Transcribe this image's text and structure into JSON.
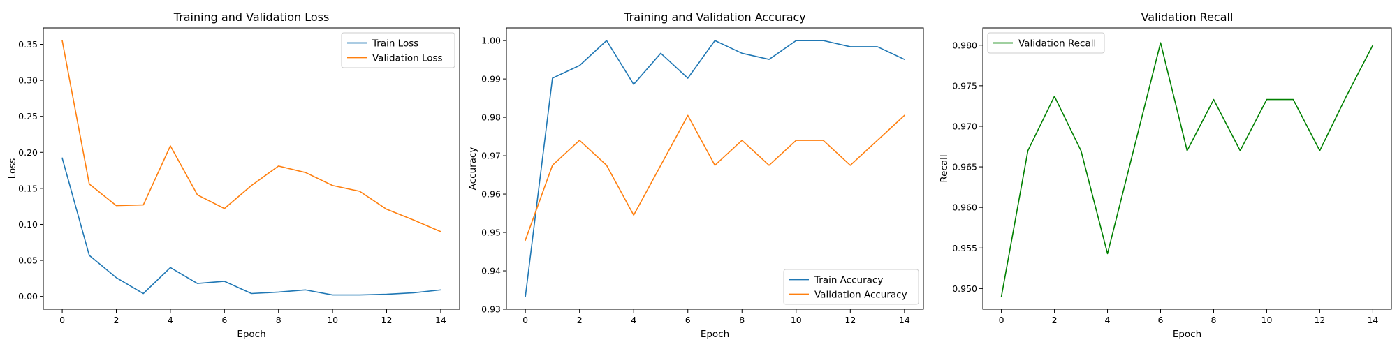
{
  "chart_data": [
    {
      "type": "line",
      "title": "Training and Validation Loss",
      "xlabel": "Epoch",
      "ylabel": "Loss",
      "x": [
        0,
        1,
        2,
        3,
        4,
        5,
        6,
        7,
        8,
        9,
        10,
        11,
        12,
        13,
        14
      ],
      "xlim": [
        -0.7,
        14.7
      ],
      "ylim": [
        -0.0178,
        0.3728
      ],
      "xticks": [
        0,
        2,
        4,
        6,
        8,
        10,
        12,
        14
      ],
      "xtick_labels": [
        "0",
        "2",
        "4",
        "6",
        "8",
        "10",
        "12",
        "14"
      ],
      "yticks": [
        0,
        0.05,
        0.1,
        0.15,
        0.2,
        0.25,
        0.3,
        0.35
      ],
      "ytick_labels": [
        "0.00",
        "0.05",
        "0.10",
        "0.15",
        "0.20",
        "0.25",
        "0.30",
        "0.35"
      ],
      "legend_position": "top-right",
      "grid": false,
      "series": [
        {
          "name": "Train Loss",
          "color": "#1f77b4",
          "values": [
            0.192,
            0.057,
            0.026,
            0.004,
            0.04,
            0.018,
            0.021,
            0.004,
            0.006,
            0.009,
            0.002,
            0.002,
            0.003,
            0.005,
            0.009
          ]
        },
        {
          "name": "Validation Loss",
          "color": "#ff7f0e",
          "values": [
            0.355,
            0.156,
            0.126,
            0.127,
            0.209,
            0.141,
            0.122,
            0.154,
            0.181,
            0.172,
            0.154,
            0.146,
            0.121,
            0.106,
            0.09
          ]
        }
      ]
    },
    {
      "type": "line",
      "title": "Training and Validation Accuracy",
      "xlabel": "Epoch",
      "ylabel": "Accuracy",
      "x": [
        0,
        1,
        2,
        3,
        4,
        5,
        6,
        7,
        8,
        9,
        10,
        11,
        12,
        13,
        14
      ],
      "xlim": [
        -0.7,
        14.7
      ],
      "ylim": [
        0.93,
        1.0033
      ],
      "xticks": [
        0,
        2,
        4,
        6,
        8,
        10,
        12,
        14
      ],
      "xtick_labels": [
        "0",
        "2",
        "4",
        "6",
        "8",
        "10",
        "12",
        "14"
      ],
      "yticks": [
        0.93,
        0.94,
        0.95,
        0.96,
        0.97,
        0.98,
        0.99,
        1.0
      ],
      "ytick_labels": [
        "0.93",
        "0.94",
        "0.95",
        "0.96",
        "0.97",
        "0.98",
        "0.99",
        "1.00"
      ],
      "legend_position": "bottom-right",
      "grid": false,
      "series": [
        {
          "name": "Train Accuracy",
          "color": "#1f77b4",
          "values": [
            0.9333,
            0.9902,
            0.9935,
            1.0,
            0.9886,
            0.9967,
            0.9902,
            1.0,
            0.9967,
            0.9951,
            1.0,
            1.0,
            0.9984,
            0.9984,
            0.9951
          ]
        },
        {
          "name": "Validation Accuracy",
          "color": "#ff7f0e",
          "values": [
            0.948,
            0.9675,
            0.974,
            0.9675,
            0.9545,
            0.9675,
            0.9805,
            0.9675,
            0.974,
            0.9675,
            0.974,
            0.974,
            0.9675,
            0.974,
            0.9805
          ]
        }
      ]
    },
    {
      "type": "line",
      "title": "Validation Recall",
      "xlabel": "Epoch",
      "ylabel": "Recall",
      "x": [
        0,
        1,
        2,
        3,
        4,
        5,
        6,
        7,
        8,
        9,
        10,
        11,
        12,
        13,
        14
      ],
      "xlim": [
        -0.7,
        14.7
      ],
      "ylim": [
        0.94745,
        0.98213
      ],
      "xticks": [
        0,
        2,
        4,
        6,
        8,
        10,
        12,
        14
      ],
      "xtick_labels": [
        "0",
        "2",
        "4",
        "6",
        "8",
        "10",
        "12",
        "14"
      ],
      "yticks": [
        0.95,
        0.955,
        0.96,
        0.965,
        0.97,
        0.975,
        0.98
      ],
      "ytick_labels": [
        "0.950",
        "0.955",
        "0.960",
        "0.965",
        "0.970",
        "0.975",
        "0.980"
      ],
      "legend_position": "top-left",
      "grid": false,
      "series": [
        {
          "name": "Validation Recall",
          "color": "#008000",
          "values": [
            0.949,
            0.967,
            0.9737,
            0.967,
            0.9543,
            0.9673,
            0.9803,
            0.967,
            0.9733,
            0.967,
            0.9733,
            0.9733,
            0.967,
            0.9737,
            0.98
          ]
        }
      ]
    }
  ]
}
